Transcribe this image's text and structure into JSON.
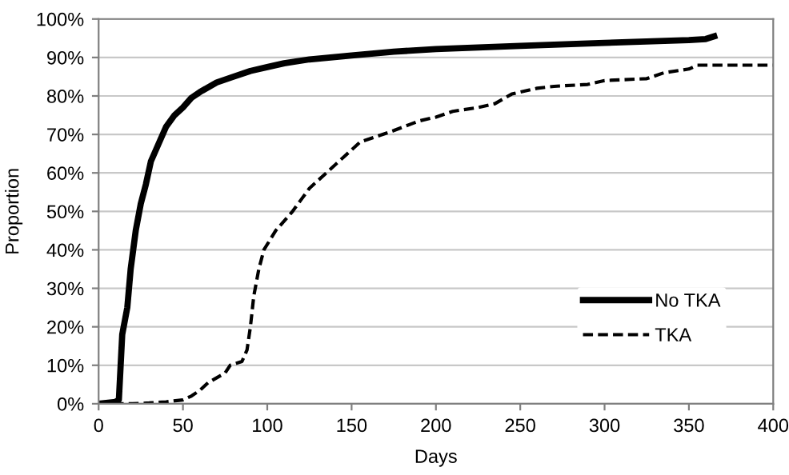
{
  "chart_data": {
    "type": "line",
    "xlabel": "Days",
    "ylabel": "Proportion",
    "xlim": [
      0,
      400
    ],
    "xticks": [
      0,
      50,
      100,
      150,
      200,
      250,
      300,
      350,
      400
    ],
    "ylim": [
      0,
      100
    ],
    "yticks": [
      {
        "value": 0,
        "label": "0%"
      },
      {
        "value": 10,
        "label": "10%"
      },
      {
        "value": 20,
        "label": "20%"
      },
      {
        "value": 30,
        "label": "30%"
      },
      {
        "value": 40,
        "label": "40%"
      },
      {
        "value": 50,
        "label": "50%"
      },
      {
        "value": 60,
        "label": "60%"
      },
      {
        "value": 70,
        "label": "70%"
      },
      {
        "value": 80,
        "label": "80%"
      },
      {
        "value": 90,
        "label": "90%"
      },
      {
        "value": 100,
        "label": "100%"
      }
    ],
    "grid": "y",
    "legend": "bottom right",
    "series": [
      {
        "name": "No TKA",
        "color": "#000000",
        "line_style": "solid",
        "x": [
          0,
          10,
          12,
          14,
          17,
          19,
          22,
          25,
          28,
          31,
          35,
          40,
          45,
          50,
          55,
          60,
          70,
          80,
          90,
          100,
          110,
          125,
          150,
          175,
          200,
          250,
          300,
          350,
          360,
          365
        ],
        "values": [
          0,
          0.5,
          1,
          18,
          25,
          35,
          45,
          52,
          57,
          63,
          67,
          72,
          75,
          77,
          79.5,
          81,
          83.5,
          85,
          86.5,
          87.5,
          88.5,
          89.5,
          90.5,
          91.5,
          92.2,
          93,
          93.8,
          94.5,
          94.8,
          95.5
        ]
      },
      {
        "name": "TKA",
        "color": "#000000",
        "line_style": "dashed",
        "x": [
          0,
          20,
          30,
          40,
          50,
          55,
          60,
          65,
          75,
          78,
          85,
          88,
          90,
          92,
          95,
          98,
          105,
          115,
          120,
          125,
          135,
          145,
          155,
          165,
          175,
          190,
          200,
          210,
          225,
          235,
          245,
          260,
          270,
          290,
          300,
          325,
          335,
          350,
          355,
          400
        ],
        "values": [
          0,
          0,
          0.2,
          0.5,
          1,
          2,
          3.5,
          5.5,
          8,
          10,
          11,
          14,
          20,
          28,
          35,
          40,
          45,
          50,
          53,
          56,
          60,
          64,
          68,
          69.5,
          71,
          73.5,
          74.5,
          76,
          77,
          78,
          80.5,
          82,
          82.5,
          83,
          84,
          84.5,
          86,
          87,
          88,
          88
        ]
      }
    ]
  }
}
